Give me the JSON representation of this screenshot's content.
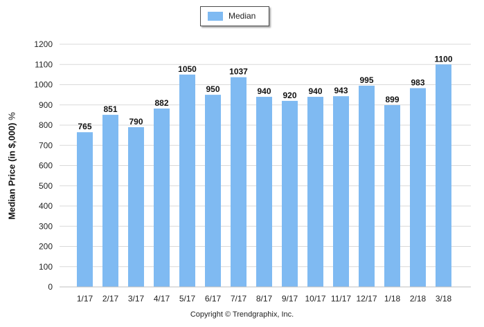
{
  "chart_data": {
    "type": "bar",
    "categories": [
      "1/17",
      "2/17",
      "3/17",
      "4/17",
      "5/17",
      "6/17",
      "7/17",
      "8/17",
      "9/17",
      "10/17",
      "11/17",
      "12/17",
      "1/18",
      "2/18",
      "3/18"
    ],
    "series": [
      {
        "name": "Median",
        "values": [
          765,
          851,
          790,
          882,
          1050,
          950,
          1037,
          940,
          920,
          940,
          943,
          995,
          899,
          983,
          1100
        ]
      }
    ],
    "title": "",
    "xlabel": "",
    "ylabel": "Median Price (in $,000)",
    "ylabel_suffix": "%",
    "ylim": [
      0,
      1200
    ],
    "yticks": [
      0,
      100,
      200,
      300,
      400,
      500,
      600,
      700,
      800,
      900,
      1000,
      1100,
      1200
    ],
    "grid": "horizontal",
    "legend_position": "top-center",
    "data_labels": true,
    "bar_color": "#7fbaf2"
  },
  "footer": {
    "copyright": "Copyright © Trendgraphix, Inc."
  }
}
